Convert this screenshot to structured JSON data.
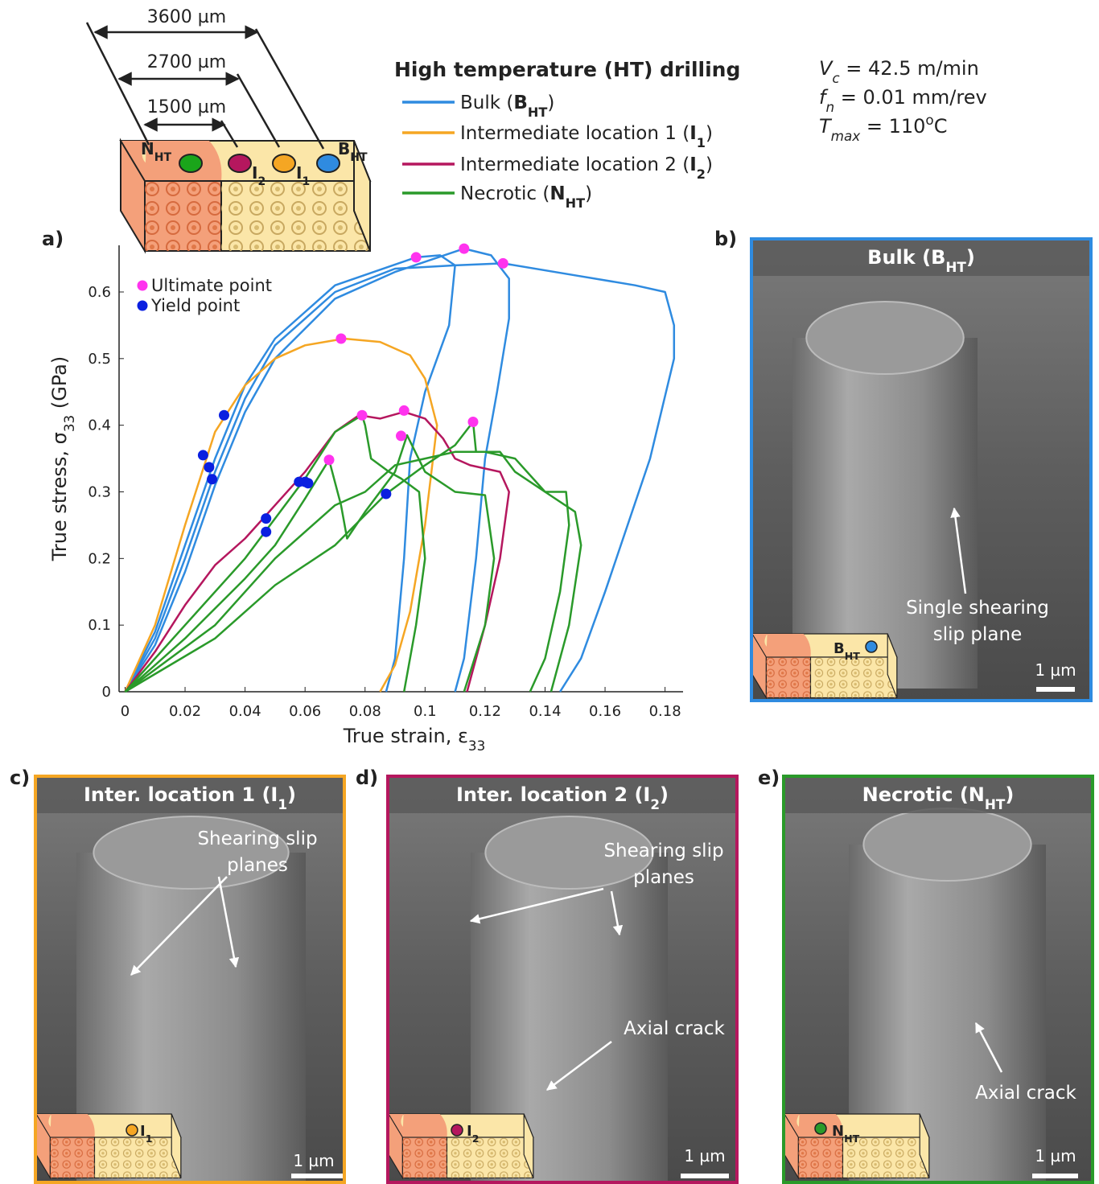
{
  "chart_data": {
    "type": "line",
    "xlabel": {
      "text": "True strain, ε",
      "sub": "33"
    },
    "ylabel": {
      "text": "True stress, σ",
      "sub": "33",
      "end": " (GPa)"
    },
    "xlim": [
      -0.002,
      0.186
    ],
    "ylim": [
      0,
      0.67
    ],
    "xticks": [
      0,
      0.02,
      0.04,
      0.06,
      0.08,
      0.1,
      0.12,
      0.14,
      0.16,
      0.18
    ],
    "yticks": [
      0,
      0.1,
      0.2,
      0.3,
      0.4,
      0.5,
      0.6
    ],
    "legend_title": "High temperature (HT) drilling",
    "series": [
      {
        "name": {
          "text": "Bulk (",
          "b": "B",
          "bsub": "HT",
          "end": ")"
        },
        "color": "#2f8be0",
        "curves": [
          {
            "x": [
              0,
              0.01,
              0.02,
              0.03,
              0.04,
              0.05,
              0.07,
              0.09,
              0.11,
              0.126,
              0.15,
              0.17,
              0.18,
              0.183,
              0.183,
              0.175,
              0.16,
              0.152,
              0.145
            ],
            "y": [
              0,
              0.08,
              0.2,
              0.33,
              0.44,
              0.52,
              0.6,
              0.635,
              0.64,
              0.643,
              0.625,
              0.61,
              0.6,
              0.55,
              0.5,
              0.35,
              0.15,
              0.05,
              0
            ]
          },
          {
            "x": [
              0,
              0.01,
              0.02,
              0.03,
              0.04,
              0.05,
              0.07,
              0.09,
              0.113,
              0.122,
              0.128,
              0.128,
              0.124,
              0.12,
              0.117,
              0.113,
              0.11
            ],
            "y": [
              0,
              0.07,
              0.18,
              0.31,
              0.42,
              0.5,
              0.59,
              0.63,
              0.665,
              0.655,
              0.62,
              0.56,
              0.45,
              0.35,
              0.2,
              0.05,
              0
            ]
          },
          {
            "x": [
              0,
              0.01,
              0.02,
              0.03,
              0.04,
              0.05,
              0.07,
              0.097,
              0.105,
              0.11,
              0.108,
              0.1,
              0.095,
              0.093,
              0.09,
              0.087
            ],
            "y": [
              0,
              0.09,
              0.22,
              0.35,
              0.46,
              0.53,
              0.61,
              0.652,
              0.655,
              0.64,
              0.55,
              0.45,
              0.35,
              0.2,
              0.05,
              0
            ]
          }
        ]
      },
      {
        "name": {
          "text": "Intermediate location 1 (",
          "b": "I",
          "bsub": "1",
          "end": ")"
        },
        "color": "#f5a623",
        "curves": [
          {
            "x": [
              0,
              0.01,
              0.02,
              0.03,
              0.04,
              0.05,
              0.06,
              0.073,
              0.085,
              0.095,
              0.1,
              0.104,
              0.1,
              0.095,
              0.09,
              0.085
            ],
            "y": [
              0,
              0.1,
              0.25,
              0.39,
              0.46,
              0.5,
              0.52,
              0.53,
              0.525,
              0.505,
              0.47,
              0.4,
              0.25,
              0.12,
              0.04,
              0
            ]
          }
        ]
      },
      {
        "name": {
          "text": "Intermediate location 2 (",
          "b": "I",
          "bsub": "2",
          "end": ")"
        },
        "color": "#b5175e",
        "curves": [
          {
            "x": [
              0,
              0.01,
              0.02,
              0.03,
              0.04,
              0.05,
              0.06,
              0.07,
              0.078,
              0.085,
              0.093,
              0.1,
              0.106,
              0.11,
              0.115,
              0.125,
              0.128,
              0.125,
              0.12,
              0.114
            ],
            "y": [
              0,
              0.06,
              0.13,
              0.19,
              0.23,
              0.28,
              0.33,
              0.39,
              0.415,
              0.41,
              0.42,
              0.41,
              0.38,
              0.35,
              0.34,
              0.33,
              0.3,
              0.2,
              0.1,
              0
            ]
          }
        ]
      },
      {
        "name": {
          "text": "Necrotic (",
          "b": "N",
          "bsub": "HT",
          "end": ")"
        },
        "color": "#2a9a2a",
        "curves": [
          {
            "x": [
              0,
              0.02,
              0.04,
              0.06,
              0.07,
              0.079,
              0.08,
              0.082,
              0.088,
              0.092,
              0.098,
              0.1,
              0.097,
              0.093
            ],
            "y": [
              0,
              0.1,
              0.2,
              0.32,
              0.39,
              0.415,
              0.4,
              0.35,
              0.33,
              0.32,
              0.3,
              0.2,
              0.1,
              0
            ]
          },
          {
            "x": [
              0,
              0.02,
              0.04,
              0.05,
              0.06,
              0.068,
              0.072,
              0.074,
              0.08,
              0.09,
              0.094,
              0.1,
              0.11,
              0.12,
              0.123,
              0.12,
              0.113
            ],
            "y": [
              0,
              0.08,
              0.17,
              0.22,
              0.29,
              0.348,
              0.28,
              0.23,
              0.27,
              0.33,
              0.385,
              0.33,
              0.3,
              0.295,
              0.2,
              0.1,
              0
            ]
          },
          {
            "x": [
              0,
              0.03,
              0.05,
              0.07,
              0.087,
              0.1,
              0.11,
              0.116,
              0.117,
              0.125,
              0.13,
              0.14,
              0.147,
              0.148,
              0.145,
              0.14,
              0.135
            ],
            "y": [
              0,
              0.08,
              0.16,
              0.22,
              0.297,
              0.34,
              0.37,
              0.405,
              0.36,
              0.36,
              0.33,
              0.3,
              0.3,
              0.25,
              0.15,
              0.05,
              0
            ]
          },
          {
            "x": [
              0,
              0.03,
              0.05,
              0.07,
              0.08,
              0.09,
              0.1,
              0.11,
              0.12,
              0.13,
              0.14,
              0.15,
              0.152,
              0.148,
              0.142
            ],
            "y": [
              0,
              0.1,
              0.2,
              0.28,
              0.3,
              0.34,
              0.35,
              0.36,
              0.36,
              0.35,
              0.3,
              0.27,
              0.22,
              0.1,
              0
            ]
          }
        ]
      }
    ],
    "points": [
      {
        "name": "Ultimate point",
        "color": "#ff33ee",
        "x": [
          0.097,
          0.113,
          0.126,
          0.072,
          0.079,
          0.093,
          0.092,
          0.068,
          0.116
        ],
        "y": [
          0.652,
          0.665,
          0.643,
          0.53,
          0.415,
          0.422,
          0.384,
          0.348,
          0.405
        ]
      },
      {
        "name": "Yield point",
        "color": "#0a1fe0",
        "x": [
          0.026,
          0.033,
          0.028,
          0.029,
          0.047,
          0.047,
          0.058,
          0.06,
          0.061,
          0.087
        ],
        "y": [
          0.355,
          0.415,
          0.337,
          0.319,
          0.26,
          0.24,
          0.315,
          0.315,
          0.313,
          0.297
        ]
      }
    ]
  },
  "figure": {
    "panel_labels": [
      "a)",
      "b)",
      "c)",
      "d)",
      "e)"
    ],
    "dimensions": [
      "3600 µm",
      "2700 µm",
      "1500 µm"
    ],
    "schematic_labels": [
      {
        "b": "N",
        "bsub": "HT"
      },
      {
        "b": "I",
        "bsub": "2"
      },
      {
        "b": "I",
        "bsub": "1"
      },
      {
        "b": "B",
        "bsub": "HT"
      }
    ],
    "parameters": [
      {
        "i": "V",
        "isub": "c",
        "text": " = 42.5 m/min"
      },
      {
        "i": "f",
        "isub": "n",
        "text": " = 0.01 mm/rev"
      },
      {
        "i": "T",
        "isub": "max",
        "text": " = 110",
        "sup": "o",
        "end": "C"
      }
    ],
    "panels": [
      {
        "title": {
          "text": "Bulk (",
          "b": "B",
          "bsub": "HT",
          "end": ")"
        },
        "color": "#2f8be0",
        "annotations": [
          [
            "Single shearing",
            "slip plane"
          ]
        ],
        "scale": "1 µm",
        "inset": {
          "b": "B",
          "bsub": "HT"
        }
      },
      {
        "title": {
          "text": "Inter. location 1 (",
          "b": "I",
          "bsub": "1",
          "end": ")"
        },
        "color": "#f5a623",
        "annotations": [
          [
            "Shearing slip",
            "planes"
          ]
        ],
        "scale": "1 µm",
        "inset": {
          "b": "I",
          "bsub": "1"
        }
      },
      {
        "title": {
          "text": "Inter. location 2 (",
          "b": "I",
          "bsub": "2",
          "end": ")"
        },
        "color": "#b5175e",
        "annotations": [
          [
            "Shearing slip",
            "planes"
          ],
          [
            "Axial crack"
          ]
        ],
        "scale": "1 µm",
        "inset": {
          "b": "I",
          "bsub": "2"
        }
      },
      {
        "title": {
          "text": "Necrotic (",
          "b": "N",
          "bsub": "HT",
          "end": ")"
        },
        "color": "#2a9a2a",
        "annotations": [
          [
            "Axial crack"
          ]
        ],
        "scale": "1 µm",
        "inset": {
          "b": "N",
          "bsub": "HT"
        }
      }
    ]
  }
}
